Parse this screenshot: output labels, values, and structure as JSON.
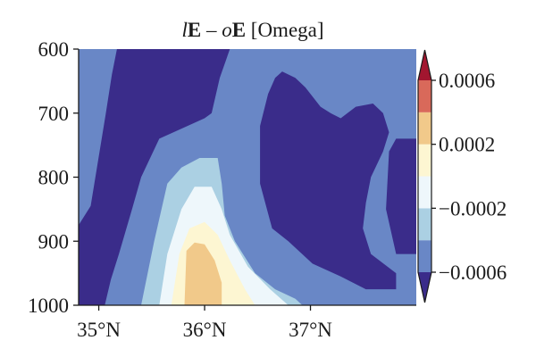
{
  "chart_data": {
    "type": "contour",
    "title": {
      "parts": [
        {
          "text": "l",
          "style": "italic"
        },
        {
          "text": "E",
          "style": "bold"
        },
        {
          "text": " – ",
          "style": "normal"
        },
        {
          "text": "o",
          "style": "italic"
        },
        {
          "text": "E",
          "style": "bold"
        },
        {
          "text": " [Omega]",
          "style": "normal"
        }
      ]
    },
    "xlabel": "",
    "ylabel": "",
    "x_ticks": [
      {
        "value": 34.9,
        "label": "35°N"
      },
      {
        "value": 35.95,
        "label": "36°N"
      },
      {
        "value": 37.0,
        "label": "37°N"
      }
    ],
    "xlim": [
      34.7,
      38.05
    ],
    "y_ticks": [
      {
        "value": 600,
        "label": "600"
      },
      {
        "value": 700,
        "label": "700"
      },
      {
        "value": 800,
        "label": "800"
      },
      {
        "value": 900,
        "label": "900"
      },
      {
        "value": 1000,
        "label": "1000"
      }
    ],
    "ylim": [
      1000,
      600
    ],
    "colorbar": {
      "levels": [
        -0.0008,
        -0.0006,
        -0.0004,
        -0.0002,
        0,
        0.0002,
        0.0004,
        0.0006,
        0.0008
      ],
      "colors": [
        "#3a2c8a",
        "#6987c6",
        "#abd0e3",
        "#eef7fb",
        "#fdf6d2",
        "#f1c98a",
        "#d9695a",
        "#a2162f"
      ],
      "extend": "both",
      "tick_labels": [
        {
          "value": 0.0006,
          "label": "0.0006"
        },
        {
          "value": 0.0002,
          "label": "0.0002"
        },
        {
          "value": -0.0002,
          "label": "−0.0002"
        },
        {
          "value": -0.0006,
          "label": "−0.0006"
        }
      ]
    },
    "background_color": "#6987c6",
    "regions": [
      {
        "level": "low",
        "color": "#3a2c8a",
        "points": [
          [
            35.08,
            600
          ],
          [
            36.2,
            600
          ],
          [
            36.1,
            645
          ],
          [
            36.02,
            700
          ],
          [
            35.95,
            708
          ],
          [
            35.78,
            720
          ],
          [
            35.5,
            740
          ],
          [
            35.32,
            800
          ],
          [
            35.23,
            850
          ],
          [
            35.1,
            920
          ],
          [
            35.02,
            960
          ],
          [
            34.96,
            1000
          ],
          [
            34.7,
            1000
          ],
          [
            34.7,
            875
          ],
          [
            34.82,
            845
          ],
          [
            34.97,
            700
          ],
          [
            35.03,
            640
          ]
        ]
      },
      {
        "level": "low",
        "color": "#3a2c8a",
        "points": [
          [
            36.72,
            635
          ],
          [
            36.85,
            645
          ],
          [
            36.95,
            660
          ],
          [
            37.1,
            690
          ],
          [
            37.2,
            700
          ],
          [
            37.3,
            708
          ],
          [
            37.45,
            690
          ],
          [
            37.62,
            685
          ],
          [
            37.72,
            700
          ],
          [
            37.78,
            730
          ],
          [
            37.72,
            760
          ],
          [
            37.6,
            800
          ],
          [
            37.55,
            840
          ],
          [
            37.52,
            880
          ],
          [
            37.6,
            920
          ],
          [
            37.85,
            950
          ],
          [
            37.85,
            975
          ],
          [
            37.55,
            975
          ],
          [
            37.3,
            955
          ],
          [
            37.02,
            935
          ],
          [
            36.78,
            900
          ],
          [
            36.62,
            880
          ],
          [
            36.5,
            810
          ],
          [
            36.5,
            720
          ],
          [
            36.58,
            670
          ],
          [
            36.65,
            645
          ]
        ]
      },
      {
        "level": "low",
        "color": "#3a2c8a",
        "points": [
          [
            38.05,
            740
          ],
          [
            37.85,
            740
          ],
          [
            37.78,
            760
          ],
          [
            37.75,
            850
          ],
          [
            37.85,
            920
          ],
          [
            38.05,
            920
          ]
        ]
      },
      {
        "level": "mid",
        "color": "#abd0e3",
        "points": [
          [
            35.32,
            1000
          ],
          [
            35.45,
            900
          ],
          [
            35.58,
            810
          ],
          [
            35.72,
            785
          ],
          [
            35.9,
            770
          ],
          [
            36.08,
            770
          ],
          [
            36.12,
            810
          ],
          [
            36.15,
            860
          ],
          [
            36.25,
            900
          ],
          [
            36.45,
            950
          ],
          [
            36.65,
            975
          ],
          [
            36.85,
            990
          ],
          [
            36.92,
            1000
          ]
        ]
      },
      {
        "level": "pale",
        "color": "#eef7fb",
        "points": [
          [
            35.5,
            1000
          ],
          [
            35.58,
            920
          ],
          [
            35.72,
            850
          ],
          [
            35.85,
            815
          ],
          [
            36.02,
            815
          ],
          [
            36.12,
            850
          ],
          [
            36.2,
            890
          ],
          [
            36.38,
            940
          ],
          [
            36.6,
            975
          ],
          [
            36.78,
            1000
          ]
        ]
      },
      {
        "level": "cream",
        "color": "#fdf6d2",
        "points": [
          [
            35.62,
            1000
          ],
          [
            35.7,
            920
          ],
          [
            35.8,
            880
          ],
          [
            35.95,
            870
          ],
          [
            36.08,
            890
          ],
          [
            36.2,
            930
          ],
          [
            36.35,
            975
          ],
          [
            36.45,
            1000
          ]
        ]
      },
      {
        "level": "orange",
        "color": "#f1c98a",
        "points": [
          [
            35.75,
            1000
          ],
          [
            35.77,
            915
          ],
          [
            35.85,
            902
          ],
          [
            35.95,
            905
          ],
          [
            36.05,
            930
          ],
          [
            36.12,
            965
          ],
          [
            36.12,
            1000
          ]
        ]
      }
    ]
  }
}
